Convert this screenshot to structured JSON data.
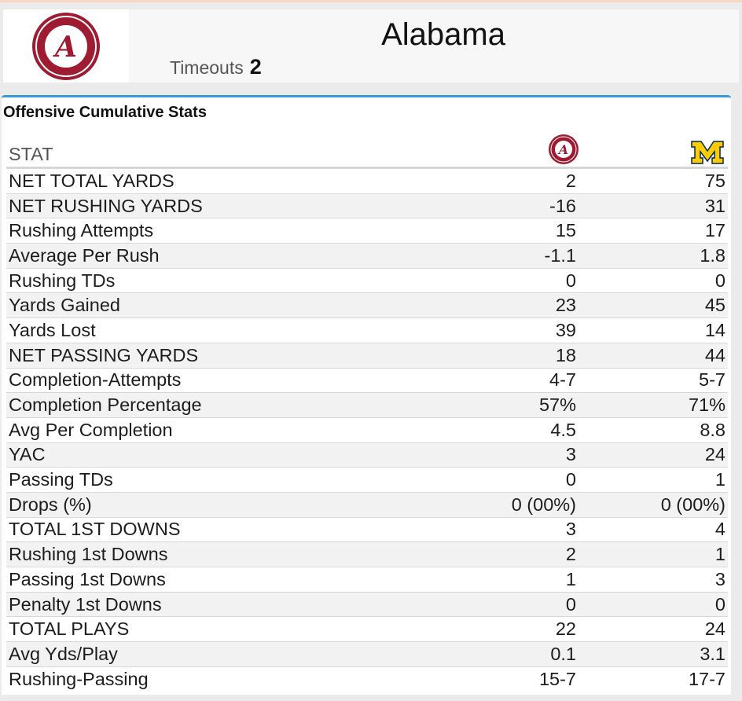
{
  "header": {
    "team_name": "Alabama",
    "timeouts_label": "Timeouts",
    "timeouts_value": "2",
    "logo_icon": "alabama-crimson-tide-logo"
  },
  "panel": {
    "title": "Offensive Cumulative Stats",
    "column_header": "STAT",
    "team_a_icon": "alabama-logo-icon",
    "team_b_icon": "michigan-m-logo-icon",
    "rows": [
      {
        "label": "NET TOTAL YARDS",
        "a": "2",
        "b": "75"
      },
      {
        "label": "NET RUSHING YARDS",
        "a": "-16",
        "b": "31"
      },
      {
        "label": "Rushing Attempts",
        "a": "15",
        "b": "17"
      },
      {
        "label": "Average Per Rush",
        "a": "-1.1",
        "b": "1.8"
      },
      {
        "label": "Rushing TDs",
        "a": "0",
        "b": "0"
      },
      {
        "label": "Yards Gained",
        "a": "23",
        "b": "45"
      },
      {
        "label": "Yards Lost",
        "a": "39",
        "b": "14"
      },
      {
        "label": "NET PASSING YARDS",
        "a": "18",
        "b": "44"
      },
      {
        "label": "Completion-Attempts",
        "a": "4-7",
        "b": "5-7"
      },
      {
        "label": "Completion Percentage",
        "a": "57%",
        "b": "71%"
      },
      {
        "label": "Avg Per Completion",
        "a": "4.5",
        "b": "8.8"
      },
      {
        "label": "YAC",
        "a": "3",
        "b": "24"
      },
      {
        "label": "Passing TDs",
        "a": "0",
        "b": "1"
      },
      {
        "label": "Drops (%)",
        "a": "0 (00%)",
        "b": "0 (00%)"
      },
      {
        "label": "TOTAL 1ST DOWNS",
        "a": "3",
        "b": "4"
      },
      {
        "label": "Rushing 1st Downs",
        "a": "2",
        "b": "1"
      },
      {
        "label": "Passing 1st Downs",
        "a": "1",
        "b": "3"
      },
      {
        "label": "Penalty 1st Downs",
        "a": "0",
        "b": "0"
      },
      {
        "label": "TOTAL PLAYS",
        "a": "22",
        "b": "24"
      },
      {
        "label": "Avg Yds/Play",
        "a": "0.1",
        "b": "3.1"
      },
      {
        "label": "Rushing-Passing",
        "a": "15-7",
        "b": "17-7"
      }
    ]
  },
  "colors": {
    "crimson": "#9e1b32",
    "michigan_maize": "#ffcb05",
    "michigan_blue": "#00274c",
    "panel_accent": "#3a9ad9"
  }
}
